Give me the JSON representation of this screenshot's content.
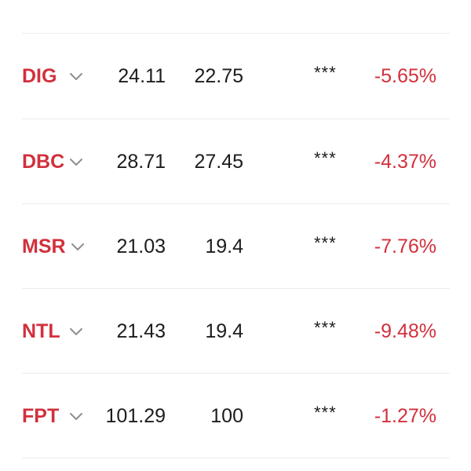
{
  "colors": {
    "symbol": "#d2303c",
    "change_negative": "#d2303c",
    "value_text": "#1c1c1e",
    "divider": "#ececec"
  },
  "rows": [
    {
      "symbol": "DIG",
      "price_1": "24.11",
      "price_2": "22.75",
      "stars": "***",
      "change": "-5.65%",
      "chevron_icon": "chevron-down-icon"
    },
    {
      "symbol": "DBC",
      "price_1": "28.71",
      "price_2": "27.45",
      "stars": "***",
      "change": "-4.37%",
      "chevron_icon": "chevron-down-icon"
    },
    {
      "symbol": "MSR",
      "price_1": "21.03",
      "price_2": "19.4",
      "stars": "***",
      "change": "-7.76%",
      "chevron_icon": "chevron-down-icon"
    },
    {
      "symbol": "NTL",
      "price_1": "21.43",
      "price_2": "19.4",
      "stars": "***",
      "change": "-9.48%",
      "chevron_icon": "chevron-down-icon"
    },
    {
      "symbol": "FPT",
      "price_1": "101.29",
      "price_2": "100",
      "stars": "***",
      "change": "-1.27%",
      "chevron_icon": "chevron-down-icon"
    }
  ]
}
